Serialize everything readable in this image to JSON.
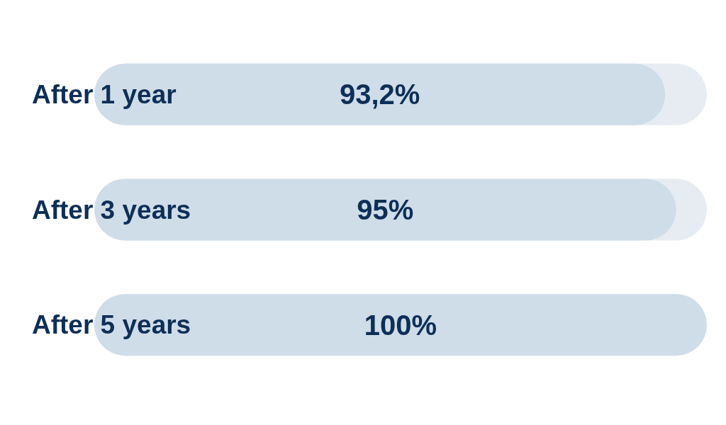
{
  "chart_data": {
    "type": "bar",
    "orientation": "horizontal",
    "categories": [
      "After 1 year",
      "After 3 years",
      "After 5 years"
    ],
    "values": [
      93.2,
      95,
      100
    ],
    "value_labels": [
      "93,2%",
      "95%",
      "100%"
    ],
    "color": "#cfdde9",
    "xlim": [
      0,
      100
    ]
  }
}
